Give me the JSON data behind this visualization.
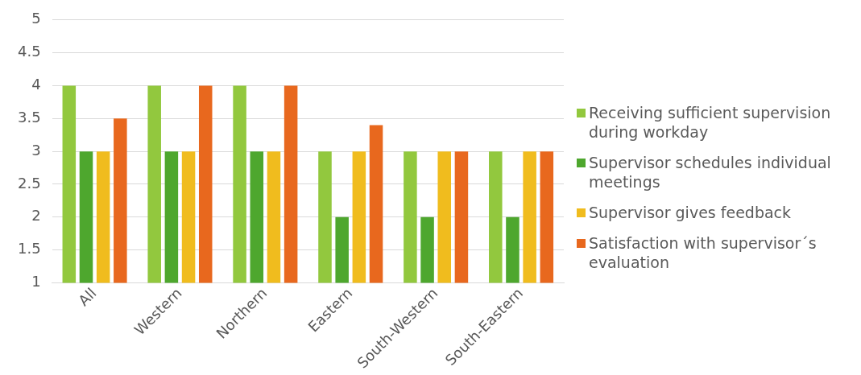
{
  "chart_data": {
    "type": "bar",
    "categories": [
      "All",
      "Western",
      "Northern",
      "Eastern",
      "South-Western",
      "South-Eastern"
    ],
    "series": [
      {
        "name": "Receiving sufficient supervision during workday",
        "color": "#92c83e",
        "values": [
          4,
          4,
          4,
          3,
          3,
          3
        ]
      },
      {
        "name": "Supervisor schedules individual meetings",
        "color": "#4ea72e",
        "values": [
          3,
          3,
          3,
          2,
          2,
          2
        ]
      },
      {
        "name": "Supervisor gives feedback",
        "color": "#f0bc1e",
        "values": [
          3,
          3,
          3,
          3,
          3,
          3
        ]
      },
      {
        "name": "Satisfaction with supervisor´s evaluation",
        "color": "#e8681e",
        "values": [
          3.5,
          4,
          4,
          3.4,
          3,
          3
        ]
      }
    ],
    "ylim": [
      1,
      5
    ],
    "yticks": [
      1,
      1.5,
      2,
      2.5,
      3,
      3.5,
      4,
      4.5,
      5
    ],
    "grid": "y",
    "legend": "right"
  }
}
